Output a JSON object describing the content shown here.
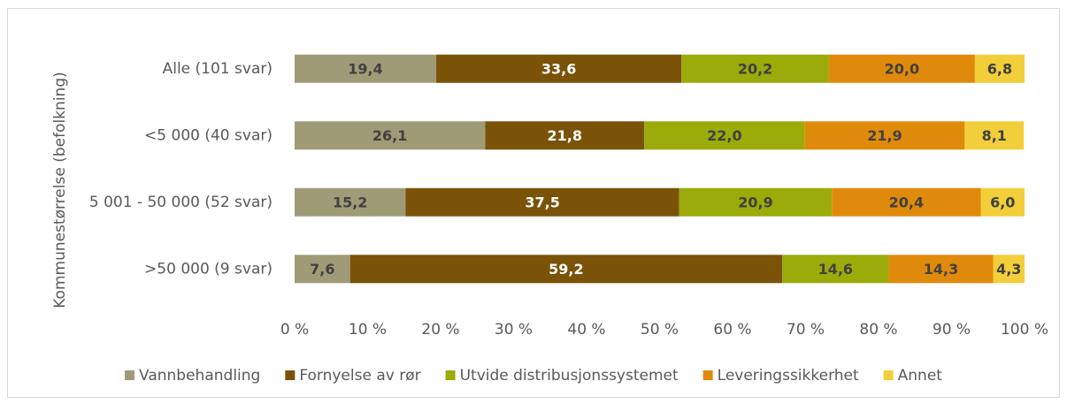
{
  "chart_data": {
    "type": "stacked_barh",
    "y_axis_label": "Kommunestørrelse (befolkning)",
    "categories": [
      "Alle (101 svar)",
      "<5 000 (40 svar)",
      "5 001 - 50 000 (52 svar)",
      ">50 000 (9 svar)"
    ],
    "series": [
      {
        "name": "Vannbehandling",
        "color": "#a09b77",
        "values": [
          19.4,
          26.1,
          15.2,
          7.6
        ],
        "value_labels": [
          "19,4",
          "26,1",
          "15,2",
          "7,6"
        ]
      },
      {
        "name": "Fornyelse av rør",
        "color": "#7a5309",
        "values": [
          33.6,
          21.8,
          37.5,
          59.2
        ],
        "value_labels": [
          "33,6",
          "21,8",
          "37,5",
          "59,2"
        ]
      },
      {
        "name": "Utvide distribusjonssystemet",
        "color": "#9aab0a",
        "values": [
          20.2,
          22.0,
          20.9,
          14.6
        ],
        "value_labels": [
          "20,2",
          "22,0",
          "20,9",
          "14,6"
        ]
      },
      {
        "name": "Leveringssikkerhet",
        "color": "#e08a0c",
        "values": [
          20.0,
          21.9,
          20.4,
          14.3
        ],
        "value_labels": [
          "20,0",
          "21,9",
          "20,4",
          "14,3"
        ]
      },
      {
        "name": "Annet",
        "color": "#f2cf3a",
        "values": [
          6.8,
          8.1,
          6.0,
          4.3
        ],
        "value_labels": [
          "6,8",
          "8,1",
          "6,0",
          "4,3"
        ]
      }
    ],
    "xlim": [
      0,
      100
    ],
    "xticks": [
      {
        "value": 0,
        "label": "0 %"
      },
      {
        "value": 10,
        "label": "10 %"
      },
      {
        "value": 20,
        "label": "20 %"
      },
      {
        "value": 30,
        "label": "30 %"
      },
      {
        "value": 40,
        "label": "40 %"
      },
      {
        "value": 50,
        "label": "50 %"
      },
      {
        "value": 60,
        "label": "60 %"
      },
      {
        "value": 70,
        "label": "70 %"
      },
      {
        "value": 80,
        "label": "80 %"
      },
      {
        "value": 90,
        "label": "90 %"
      },
      {
        "value": 100,
        "label": "100 %"
      }
    ],
    "legend": "bottom",
    "grid": false
  }
}
